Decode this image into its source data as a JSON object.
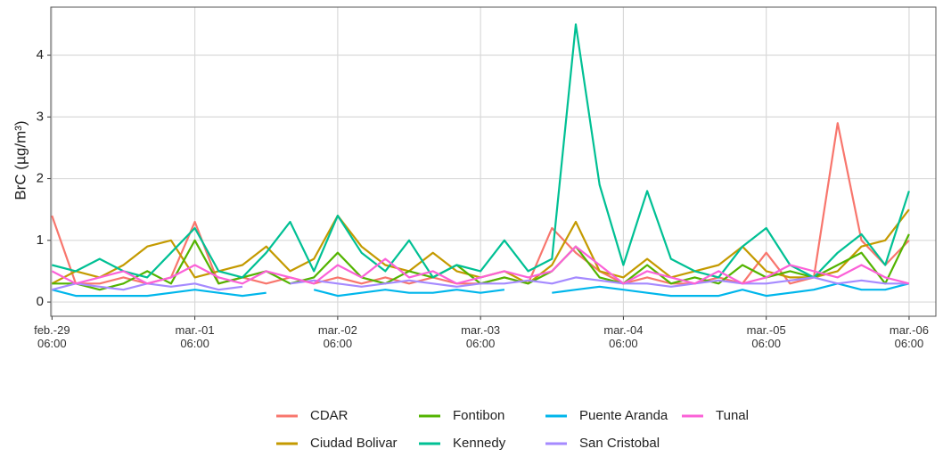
{
  "chart_data": {
    "type": "line",
    "y_label": "BrC (µg/m³)",
    "x": [
      0,
      4,
      8,
      12,
      16,
      20,
      24,
      28,
      32,
      36,
      40,
      44,
      48,
      52,
      56,
      60,
      64,
      68,
      72,
      76,
      80,
      84,
      88,
      92,
      96,
      100,
      104,
      108,
      112,
      116,
      120,
      124,
      128,
      132,
      136,
      140,
      144
    ],
    "xlim": [
      -0.2,
      148.5
    ],
    "xticks": [
      {
        "value": 0,
        "label": "feb.-29\n06:00"
      },
      {
        "value": 24,
        "label": "mar.-01\n06:00"
      },
      {
        "value": 48,
        "label": "mar.-02\n06:00"
      },
      {
        "value": 72,
        "label": "mar.-03\n06:00"
      },
      {
        "value": 96,
        "label": "mar.-04\n06:00"
      },
      {
        "value": 120,
        "label": "mar.-05\n06:00"
      },
      {
        "value": 144,
        "label": "mar.-06\n06:00"
      }
    ],
    "ylim": [
      -0.23,
      4.78
    ],
    "yticks": [
      0,
      1,
      2,
      3,
      4
    ],
    "grid": true,
    "legend": "bottom",
    "series": [
      {
        "name": "CDAR",
        "color": "#F8766D",
        "values": [
          1.4,
          0.3,
          0.3,
          0.4,
          0.3,
          0.4,
          1.3,
          0.3,
          0.4,
          0.3,
          0.4,
          0.3,
          0.4,
          0.3,
          0.4,
          0.3,
          0.4,
          0.3,
          0.3,
          0.4,
          0.3,
          1.2,
          0.8,
          0.5,
          0.3,
          0.4,
          0.3,
          0.3,
          0.4,
          0.3,
          0.8,
          0.3,
          0.4,
          2.9,
          1.0,
          0.6,
          1.0
        ]
      },
      {
        "name": "Ciudad Bolivar",
        "color": "#C49A00",
        "values": [
          0.3,
          0.5,
          0.4,
          0.6,
          0.9,
          1.0,
          0.4,
          0.5,
          0.6,
          0.9,
          0.5,
          0.7,
          1.4,
          0.9,
          0.6,
          0.5,
          0.8,
          0.5,
          0.4,
          0.5,
          0.3,
          0.6,
          1.3,
          0.5,
          0.4,
          0.7,
          0.4,
          0.5,
          0.6,
          0.9,
          0.5,
          0.4,
          0.4,
          0.5,
          0.9,
          1.0,
          1.5
        ]
      },
      {
        "name": "Fontibon",
        "color": "#53B400",
        "values": [
          0.3,
          0.3,
          0.2,
          0.3,
          0.5,
          0.3,
          1.0,
          0.3,
          0.4,
          0.5,
          0.3,
          0.4,
          0.8,
          0.4,
          0.3,
          0.5,
          0.4,
          0.6,
          0.3,
          0.4,
          0.3,
          0.5,
          0.9,
          0.4,
          0.3,
          0.6,
          0.3,
          0.4,
          0.3,
          0.6,
          0.4,
          0.5,
          0.4,
          0.6,
          0.8,
          0.3,
          1.1
        ]
      },
      {
        "name": "Kennedy",
        "color": "#00C094",
        "values": [
          0.6,
          0.5,
          0.7,
          0.5,
          0.4,
          0.8,
          1.2,
          0.5,
          0.4,
          0.8,
          1.3,
          0.5,
          1.4,
          0.8,
          0.5,
          1.0,
          0.4,
          0.6,
          0.5,
          1.0,
          0.5,
          0.7,
          4.5,
          1.9,
          0.6,
          1.8,
          0.7,
          0.5,
          0.4,
          0.9,
          1.2,
          0.6,
          0.4,
          0.8,
          1.1,
          0.6,
          1.8
        ]
      },
      {
        "name": "Puente Aranda",
        "color": "#00B6EB",
        "values": [
          0.2,
          0.1,
          0.1,
          0.1,
          0.1,
          0.15,
          0.2,
          0.15,
          0.1,
          0.15,
          null,
          0.2,
          0.1,
          0.15,
          0.2,
          0.15,
          0.15,
          0.2,
          0.15,
          0.2,
          null,
          0.15,
          0.2,
          0.25,
          0.2,
          0.15,
          0.1,
          0.1,
          0.1,
          0.2,
          0.1,
          0.15,
          0.2,
          0.3,
          0.2,
          0.2,
          0.3
        ]
      },
      {
        "name": "San Cristobal",
        "color": "#A58AFF",
        "values": [
          0.2,
          0.3,
          0.25,
          0.2,
          0.3,
          0.25,
          0.3,
          0.2,
          0.25,
          null,
          0.3,
          0.35,
          0.3,
          0.25,
          0.3,
          0.35,
          0.3,
          0.25,
          0.3,
          0.3,
          0.35,
          0.3,
          0.4,
          0.35,
          0.3,
          0.3,
          0.25,
          0.3,
          0.35,
          0.3,
          0.3,
          0.35,
          0.4,
          0.3,
          0.35,
          0.3,
          0.3
        ]
      },
      {
        "name": "Tunal",
        "color": "#FB61D7",
        "values": [
          0.5,
          0.3,
          0.4,
          0.5,
          0.3,
          0.4,
          0.6,
          0.4,
          0.3,
          0.5,
          0.4,
          0.3,
          0.6,
          0.4,
          0.7,
          0.4,
          0.5,
          0.3,
          0.4,
          0.5,
          0.4,
          0.5,
          0.9,
          0.6,
          0.3,
          0.5,
          0.4,
          0.3,
          0.5,
          0.3,
          0.4,
          0.6,
          0.5,
          0.4,
          0.6,
          0.4,
          0.3
        ]
      }
    ]
  }
}
